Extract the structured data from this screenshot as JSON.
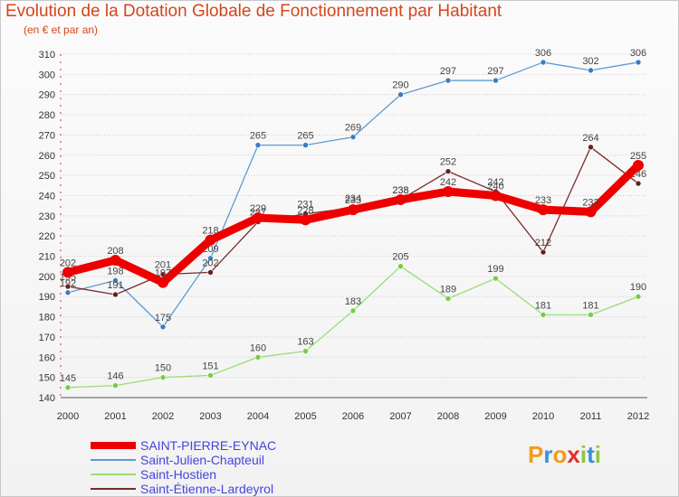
{
  "chart_data": {
    "type": "line",
    "title": "Evolution de la Dotation Globale de Fonctionnement par Habitant",
    "subtitle": "(en € et par an)",
    "xlabel": "",
    "ylabel": "",
    "ylim": [
      140,
      310
    ],
    "yticks": [
      140,
      150,
      160,
      170,
      180,
      190,
      200,
      210,
      220,
      230,
      240,
      250,
      260,
      270,
      280,
      290,
      300,
      310
    ],
    "categories": [
      "2000",
      "2001",
      "2002",
      "2003",
      "2004",
      "2005",
      "2006",
      "2007",
      "2008",
      "2009",
      "2010",
      "2011",
      "2012"
    ],
    "series": [
      {
        "name": "Saint-Julien-Chapteuil",
        "color": "#5b9bd5",
        "marker_color": "#3a7cc0",
        "values": [
          192,
          198,
          175,
          209,
          265,
          265,
          269,
          290,
          297,
          297,
          306,
          302,
          306
        ],
        "labels": [
          "192",
          "198",
          "175",
          "209",
          "265",
          "265",
          "269",
          "290",
          "297",
          "297",
          "306",
          "302",
          "306"
        ]
      },
      {
        "name": "Saint-Hostien",
        "color": "#99dd77",
        "marker_color": "#77cc44",
        "values": [
          145,
          146,
          150,
          151,
          160,
          163,
          183,
          205,
          189,
          199,
          181,
          181,
          190
        ],
        "labels": [
          "145",
          "146",
          "150",
          "151",
          "160",
          "163",
          "183",
          "205",
          "189",
          "199",
          "181",
          "181",
          "190"
        ]
      },
      {
        "name": "Saint-Étienne-Lardeyrol",
        "color": "#7a2c2c",
        "marker_color": "#6a1e1e",
        "values": [
          195,
          191,
          201,
          202,
          227,
          231,
          234,
          238,
          252,
          242,
          212,
          264,
          246
        ],
        "labels": [
          "195",
          "191",
          "201",
          "202",
          "227",
          "231",
          "234",
          "238",
          "252",
          "242",
          "212",
          "264",
          "246"
        ]
      },
      {
        "name": "SAINT-PIERRE-EYNAC",
        "color": "#ee0000",
        "marker_color": "#ee0000",
        "values": [
          202,
          208,
          197,
          218,
          229,
          228,
          233,
          238,
          242,
          240,
          233,
          232,
          255
        ],
        "labels": [
          "202",
          "208",
          "197",
          "218",
          "229",
          "228",
          "233",
          "238",
          "242",
          "240",
          "233",
          "232",
          "255"
        ]
      }
    ],
    "legend": [
      {
        "name": "SAINT-PIERRE-EYNAC",
        "color": "#ee0000"
      },
      {
        "name": "Saint-Julien-Chapteuil",
        "color": "#5b9bd5"
      },
      {
        "name": "Saint-Hostien",
        "color": "#99dd77"
      },
      {
        "name": "Saint-Étienne-Lardeyrol",
        "color": "#7a2c2c"
      }
    ]
  },
  "logo": {
    "letters": [
      "P",
      "r",
      "o",
      "x",
      "i",
      "t",
      "i"
    ],
    "colors": [
      "#f29b1f",
      "#3a8fd8",
      "#f29b1f",
      "#e0302a",
      "#8cc63f",
      "#3a8fd8",
      "#8cc63f"
    ]
  }
}
